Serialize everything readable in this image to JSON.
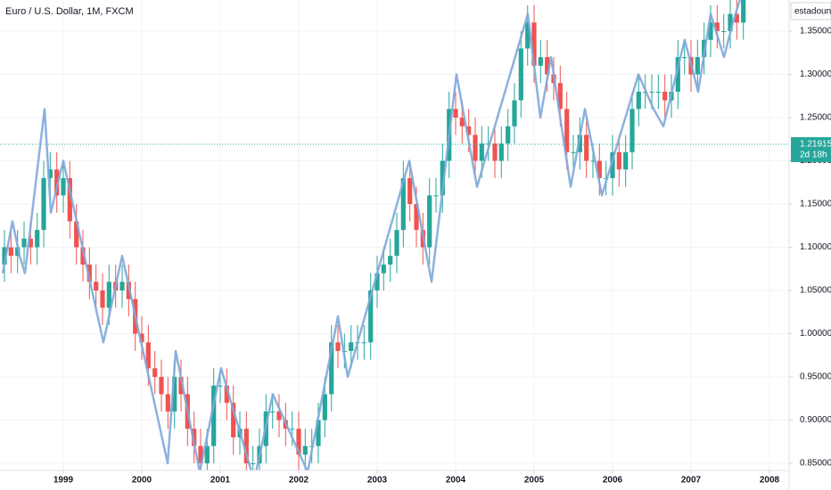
{
  "chart_data": {
    "type": "candlestick",
    "title": "Euro / U.S. Dollar, 1M, FXCM",
    "symbol_box": "estadounid",
    "up_color": "#26a69a",
    "down_color": "#ef5350",
    "grid": true,
    "x": [
      1998.25,
      1998.333,
      1998.417,
      1998.5,
      1998.583,
      1998.667,
      1998.75,
      1998.833,
      1998.917,
      1999,
      1999.083,
      1999.167,
      1999.25,
      1999.333,
      1999.417,
      1999.5,
      1999.583,
      1999.667,
      1999.75,
      1999.833,
      1999.917,
      2000,
      2000.083,
      2000.167,
      2000.25,
      2000.333,
      2000.417,
      2000.5,
      2000.583,
      2000.667,
      2000.75,
      2000.833,
      2000.917,
      2001,
      2001.083,
      2001.167,
      2001.25,
      2001.333,
      2001.417,
      2001.5,
      2001.583,
      2001.667,
      2001.75,
      2001.833,
      2001.917,
      2002,
      2002.083,
      2002.167,
      2002.25,
      2002.333,
      2002.417,
      2002.5,
      2002.583,
      2002.667,
      2002.75,
      2002.833,
      2002.917,
      2003,
      2003.083,
      2003.167,
      2003.25,
      2003.333,
      2003.417,
      2003.5,
      2003.583,
      2003.667,
      2003.75,
      2003.833,
      2003.917,
      2004,
      2004.083,
      2004.167,
      2004.25,
      2004.333,
      2004.417,
      2004.5,
      2004.583,
      2004.667,
      2004.75,
      2004.833,
      2004.917,
      2005,
      2005.083,
      2005.167,
      2005.25,
      2005.333,
      2005.417,
      2005.5,
      2005.583,
      2005.667,
      2005.75,
      2005.833,
      2005.917,
      2006,
      2006.083,
      2006.167,
      2006.25,
      2006.333,
      2006.417,
      2006.5,
      2006.583,
      2006.667,
      2006.75,
      2006.833,
      2006.917,
      2007,
      2007.083,
      2007.167,
      2007.25,
      2007.333,
      2007.417,
      2007.5,
      2007.583,
      2007.667
    ],
    "open": [
      1.08,
      1.1,
      1.09,
      1.1,
      1.11,
      1.1,
      1.12,
      1.18,
      1.19,
      1.16,
      1.18,
      1.13,
      1.1,
      1.08,
      1.06,
      1.05,
      1.03,
      1.06,
      1.05,
      1.06,
      1.04,
      1.0,
      0.99,
      0.96,
      0.95,
      0.93,
      0.91,
      0.95,
      0.93,
      0.89,
      0.87,
      0.85,
      0.87,
      0.94,
      0.94,
      0.92,
      0.88,
      0.89,
      0.85,
      0.85,
      0.87,
      0.91,
      0.91,
      0.9,
      0.89,
      0.89,
      0.86,
      0.87,
      0.87,
      0.9,
      0.93,
      0.99,
      0.98,
      0.98,
      0.99,
      0.99,
      0.99,
      1.05,
      1.07,
      1.08,
      1.09,
      1.12,
      1.18,
      1.15,
      1.12,
      1.1,
      1.16,
      1.16,
      1.2,
      1.26,
      1.25,
      1.24,
      1.23,
      1.2,
      1.22,
      1.22,
      1.2,
      1.22,
      1.24,
      1.27,
      1.33,
      1.36,
      1.31,
      1.32,
      1.3,
      1.29,
      1.26,
      1.21,
      1.21,
      1.23,
      1.2,
      1.2,
      1.18,
      1.18,
      1.21,
      1.19,
      1.21,
      1.26,
      1.28,
      1.28,
      1.28,
      1.28,
      1.27,
      1.28,
      1.32,
      1.32,
      1.3,
      1.32,
      1.34,
      1.36,
      1.35,
      1.35,
      1.37,
      1.36
    ],
    "high": [
      1.12,
      1.12,
      1.12,
      1.13,
      1.13,
      1.14,
      1.2,
      1.21,
      1.21,
      1.2,
      1.2,
      1.15,
      1.12,
      1.1,
      1.08,
      1.07,
      1.08,
      1.08,
      1.08,
      1.08,
      1.06,
      1.02,
      1.01,
      0.98,
      0.97,
      0.95,
      0.97,
      0.97,
      0.95,
      0.91,
      0.89,
      0.89,
      0.96,
      0.96,
      0.96,
      0.94,
      0.91,
      0.91,
      0.87,
      0.89,
      0.93,
      0.93,
      0.93,
      0.92,
      0.91,
      0.91,
      0.89,
      0.89,
      0.92,
      0.95,
      1.01,
      1.01,
      1.0,
      1.01,
      1.01,
      1.01,
      1.07,
      1.09,
      1.1,
      1.11,
      1.14,
      1.2,
      1.2,
      1.17,
      1.14,
      1.18,
      1.18,
      1.22,
      1.28,
      1.28,
      1.27,
      1.26,
      1.25,
      1.24,
      1.24,
      1.24,
      1.24,
      1.26,
      1.29,
      1.35,
      1.38,
      1.38,
      1.34,
      1.34,
      1.32,
      1.31,
      1.28,
      1.23,
      1.25,
      1.25,
      1.22,
      1.22,
      1.2,
      1.23,
      1.23,
      1.23,
      1.28,
      1.3,
      1.3,
      1.3,
      1.3,
      1.3,
      1.3,
      1.34,
      1.34,
      1.34,
      1.34,
      1.36,
      1.38,
      1.38,
      1.37,
      1.39,
      1.39,
      1.44
    ],
    "low": [
      1.06,
      1.07,
      1.07,
      1.08,
      1.08,
      1.08,
      1.1,
      1.16,
      1.14,
      1.14,
      1.11,
      1.08,
      1.06,
      1.04,
      1.03,
      1.01,
      1.01,
      1.03,
      1.03,
      1.02,
      0.98,
      0.97,
      0.94,
      0.93,
      0.91,
      0.89,
      0.89,
      0.91,
      0.87,
      0.85,
      0.83,
      0.83,
      0.85,
      0.92,
      0.9,
      0.86,
      0.86,
      0.83,
      0.83,
      0.83,
      0.85,
      0.89,
      0.88,
      0.87,
      0.87,
      0.84,
      0.84,
      0.85,
      0.85,
      0.88,
      0.91,
      0.96,
      0.96,
      0.96,
      0.97,
      0.97,
      0.97,
      1.03,
      1.05,
      1.06,
      1.07,
      1.1,
      1.13,
      1.1,
      1.08,
      1.08,
      1.14,
      1.14,
      1.18,
      1.23,
      1.22,
      1.21,
      1.18,
      1.18,
      1.2,
      1.18,
      1.18,
      1.2,
      1.22,
      1.25,
      1.31,
      1.29,
      1.29,
      1.28,
      1.27,
      1.24,
      1.19,
      1.19,
      1.19,
      1.18,
      1.18,
      1.16,
      1.16,
      1.16,
      1.17,
      1.17,
      1.19,
      1.24,
      1.26,
      1.26,
      1.26,
      1.25,
      1.25,
      1.26,
      1.3,
      1.28,
      1.28,
      1.3,
      1.32,
      1.33,
      1.33,
      1.33,
      1.34,
      1.34
    ],
    "close": [
      1.1,
      1.09,
      1.1,
      1.11,
      1.1,
      1.12,
      1.18,
      1.19,
      1.16,
      1.18,
      1.13,
      1.1,
      1.08,
      1.06,
      1.05,
      1.03,
      1.06,
      1.05,
      1.06,
      1.04,
      1.0,
      0.99,
      0.96,
      0.95,
      0.93,
      0.91,
      0.95,
      0.93,
      0.89,
      0.87,
      0.85,
      0.87,
      0.94,
      0.94,
      0.92,
      0.88,
      0.89,
      0.85,
      0.85,
      0.87,
      0.91,
      0.91,
      0.9,
      0.89,
      0.89,
      0.86,
      0.87,
      0.87,
      0.9,
      0.93,
      0.99,
      0.98,
      0.98,
      0.99,
      0.99,
      0.99,
      1.05,
      1.07,
      1.08,
      1.09,
      1.12,
      1.18,
      1.15,
      1.12,
      1.1,
      1.16,
      1.16,
      1.2,
      1.26,
      1.25,
      1.24,
      1.23,
      1.2,
      1.22,
      1.22,
      1.2,
      1.22,
      1.24,
      1.27,
      1.33,
      1.36,
      1.31,
      1.32,
      1.3,
      1.29,
      1.26,
      1.21,
      1.21,
      1.23,
      1.2,
      1.2,
      1.18,
      1.18,
      1.21,
      1.19,
      1.21,
      1.26,
      1.28,
      1.28,
      1.28,
      1.28,
      1.27,
      1.28,
      1.32,
      1.32,
      1.3,
      1.32,
      1.34,
      1.36,
      1.35,
      1.35,
      1.37,
      1.36,
      1.42
    ],
    "overlay": {
      "type": "line",
      "color": "#7fa8da",
      "x": [
        1998.227,
        1998.352,
        1998.443,
        1998.511,
        1998.761,
        1998.841,
        1999,
        1999.511,
        1999.75,
        2000.33,
        2000.432,
        2000.739,
        2001.011,
        2001.432,
        2001.67,
        2002.114,
        2002.5,
        2002.625,
        2003.409,
        2003.693,
        2004.011,
        2004.273,
        2004.92,
        2005.08,
        2005.216,
        2005.466,
        2005.648,
        2005.864,
        2006.33,
        2006.523,
        2006.648,
        2006.92,
        2007.091,
        2007.25,
        2007.42,
        2007.534,
        2007.67
      ],
      "values": [
        1.07,
        1.13,
        1.09,
        1.07,
        1.26,
        1.14,
        1.2,
        0.99,
        1.09,
        0.85,
        0.98,
        0.84,
        0.96,
        0.83,
        0.93,
        0.84,
        1.02,
        0.95,
        1.2,
        1.06,
        1.3,
        1.17,
        1.37,
        1.25,
        1.32,
        1.17,
        1.26,
        1.16,
        1.3,
        1.26,
        1.24,
        1.34,
        1.28,
        1.37,
        1.32,
        1.36,
        1.4
      ]
    },
    "xlim": [
      1998.193,
      2008.25
    ],
    "xticks": [
      1999,
      2000,
      2001,
      2002,
      2003,
      2004,
      2005,
      2006,
      2007,
      2008
    ],
    "ylim": [
      0.8418,
      1.3861
    ],
    "yticks": [
      {
        "value": 0.85,
        "label": "0.85000"
      },
      {
        "value": 0.9,
        "label": "0.90000"
      },
      {
        "value": 0.95,
        "label": "0.95000"
      },
      {
        "value": 1,
        "label": "1.00000"
      },
      {
        "value": 1.05,
        "label": "1.05000"
      },
      {
        "value": 1.1,
        "label": "1.10000"
      },
      {
        "value": 1.15,
        "label": "1.15000"
      },
      {
        "value": 1.2,
        "label": "1.20000"
      },
      {
        "value": 1.25,
        "label": "1.25000"
      },
      {
        "value": 1.3,
        "label": "1.30000"
      },
      {
        "value": 1.35,
        "label": "1.35000"
      }
    ],
    "last_price": 1.21915,
    "countdown": "2d 18h"
  }
}
